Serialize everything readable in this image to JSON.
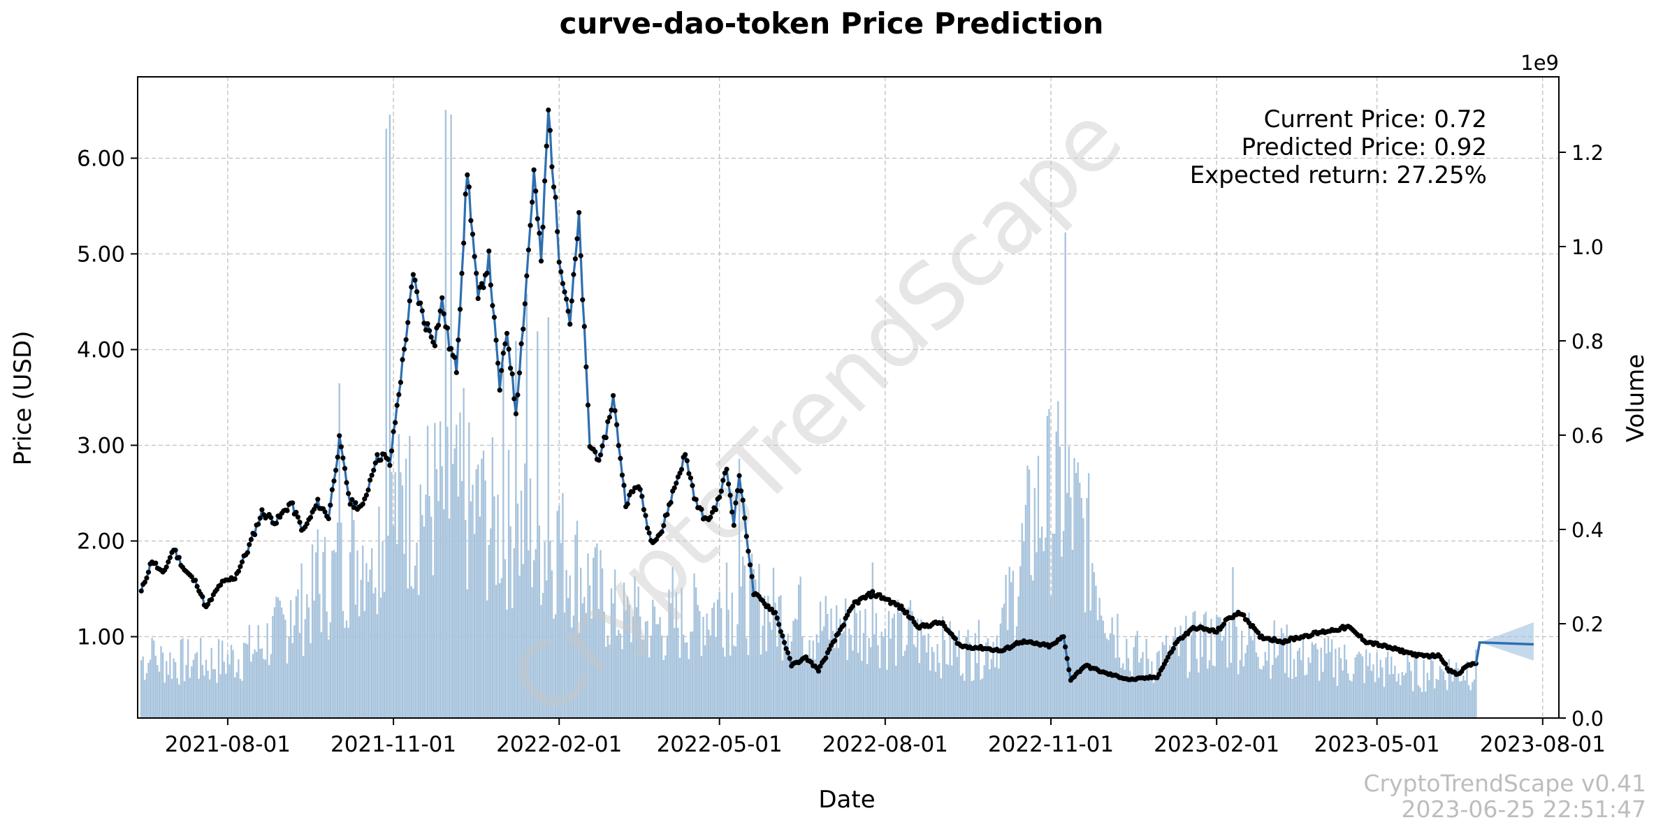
{
  "chart_data": {
    "type": "line",
    "title": "curve-dao-token Price Prediction",
    "xlabel": "Date",
    "ylabel": "Price (USD)",
    "y2label": "Volume",
    "y2_offset_label": "1e9",
    "grid": true,
    "xlim": [
      "2021-06-12",
      "2023-08-10"
    ],
    "ylim": [
      0.15,
      6.85
    ],
    "y2lim": [
      0,
      1.36
    ],
    "x_ticks": [
      "2021-08-01",
      "2021-11-01",
      "2022-02-01",
      "2022-05-01",
      "2022-08-01",
      "2022-11-01",
      "2023-02-01",
      "2023-05-01",
      "2023-08-01"
    ],
    "y_ticks": [
      1.0,
      2.0,
      3.0,
      4.0,
      5.0,
      6.0
    ],
    "y_tick_labels": [
      "1.00",
      "2.00",
      "3.00",
      "4.00",
      "5.00",
      "6.00"
    ],
    "y2_ticks": [
      0.0,
      0.2,
      0.4,
      0.6,
      0.8,
      1.0,
      1.2
    ],
    "y2_tick_labels": [
      "0.0",
      "0.2",
      "0.4",
      "0.6",
      "0.8",
      "1.0",
      "1.2"
    ],
    "price_series": {
      "name": "Price",
      "x": [
        "2021-06-14",
        "2021-06-20",
        "2021-06-26",
        "2021-07-02",
        "2021-07-08",
        "2021-07-15",
        "2021-07-20",
        "2021-07-28",
        "2021-08-05",
        "2021-08-12",
        "2021-08-20",
        "2021-08-28",
        "2021-09-05",
        "2021-09-12",
        "2021-09-20",
        "2021-09-26",
        "2021-10-02",
        "2021-10-08",
        "2021-10-15",
        "2021-10-22",
        "2021-10-26",
        "2021-10-30",
        "2021-11-05",
        "2021-11-12",
        "2021-11-18",
        "2021-11-24",
        "2021-11-28",
        "2021-12-02",
        "2021-12-06",
        "2021-12-12",
        "2021-12-18",
        "2021-12-24",
        "2021-12-30",
        "2022-01-03",
        "2022-01-08",
        "2022-01-13",
        "2022-01-18",
        "2022-01-22",
        "2022-01-26",
        "2022-02-01",
        "2022-02-07",
        "2022-02-12",
        "2022-02-18",
        "2022-02-24",
        "2022-03-03",
        "2022-03-10",
        "2022-03-17",
        "2022-03-24",
        "2022-03-30",
        "2022-04-05",
        "2022-04-12",
        "2022-04-18",
        "2022-04-24",
        "2022-04-30",
        "2022-05-05",
        "2022-05-09",
        "2022-05-12",
        "2022-05-20",
        "2022-06-01",
        "2022-06-10",
        "2022-06-18",
        "2022-06-25",
        "2022-07-05",
        "2022-07-15",
        "2022-07-25",
        "2022-08-01",
        "2022-08-10",
        "2022-08-20",
        "2022-09-01",
        "2022-09-12",
        "2022-09-25",
        "2022-10-05",
        "2022-10-15",
        "2022-10-25",
        "2022-11-01",
        "2022-11-08",
        "2022-11-12",
        "2022-11-20",
        "2022-12-01",
        "2022-12-15",
        "2022-12-30",
        "2023-01-10",
        "2023-01-20",
        "2023-02-01",
        "2023-02-08",
        "2023-02-15",
        "2023-02-25",
        "2023-03-10",
        "2023-03-20",
        "2023-04-01",
        "2023-04-15",
        "2023-04-25",
        "2023-05-05",
        "2023-05-15",
        "2023-05-25",
        "2023-06-05",
        "2023-06-10",
        "2023-06-15",
        "2023-06-20",
        "2023-06-25"
      ],
      "y": [
        1.47,
        1.8,
        1.65,
        1.92,
        1.7,
        1.55,
        1.3,
        1.55,
        1.62,
        1.9,
        2.3,
        2.2,
        2.4,
        2.1,
        2.4,
        2.25,
        3.05,
        2.4,
        2.35,
        2.85,
        2.9,
        2.8,
        3.7,
        4.75,
        4.3,
        4.1,
        4.5,
        4.05,
        3.8,
        5.88,
        4.5,
        4.95,
        3.6,
        4.2,
        3.35,
        4.5,
        5.85,
        4.9,
        6.5,
        5.0,
        4.3,
        5.35,
        3.0,
        2.85,
        3.5,
        2.4,
        2.6,
        2.0,
        2.1,
        2.5,
        2.9,
        2.4,
        2.2,
        2.4,
        2.75,
        2.2,
        2.7,
        1.45,
        1.25,
        0.7,
        0.78,
        0.65,
        1.0,
        1.35,
        1.45,
        1.4,
        1.3,
        1.1,
        1.15,
        0.9,
        0.88,
        0.85,
        0.95,
        0.92,
        0.9,
        1.0,
        0.55,
        0.7,
        0.62,
        0.55,
        0.58,
        0.95,
        1.1,
        1.05,
        1.2,
        1.25,
        1.0,
        0.95,
        1.0,
        1.05,
        1.1,
        0.95,
        0.9,
        0.85,
        0.8,
        0.8,
        0.65,
        0.6,
        0.7,
        0.72
      ]
    },
    "prediction": {
      "name": "Prediction",
      "x": [
        "2023-06-25",
        "2023-06-27",
        "2023-07-27"
      ],
      "y": [
        0.72,
        0.94,
        0.92
      ],
      "band_upper": [
        0.72,
        0.94,
        1.15
      ],
      "band_lower": [
        0.72,
        0.94,
        0.75
      ]
    },
    "volume_series": {
      "name": "Volume",
      "spikes": [
        {
          "x": "2021-06-20",
          "y": 0.17
        },
        {
          "x": "2021-07-15",
          "y": 0.14
        },
        {
          "x": "2021-08-10",
          "y": 0.16
        },
        {
          "x": "2021-09-05",
          "y": 0.25
        },
        {
          "x": "2021-09-20",
          "y": 0.4
        },
        {
          "x": "2021-10-02",
          "y": 0.71
        },
        {
          "x": "2021-10-10",
          "y": 0.42
        },
        {
          "x": "2021-10-20",
          "y": 0.36
        },
        {
          "x": "2021-10-28",
          "y": 1.25
        },
        {
          "x": "2021-10-30",
          "y": 1.28
        },
        {
          "x": "2021-11-08",
          "y": 0.55
        },
        {
          "x": "2021-11-20",
          "y": 0.62
        },
        {
          "x": "2021-11-30",
          "y": 1.29
        },
        {
          "x": "2021-12-03",
          "y": 1.28
        },
        {
          "x": "2021-12-10",
          "y": 0.7
        },
        {
          "x": "2021-12-20",
          "y": 0.55
        },
        {
          "x": "2022-01-01",
          "y": 0.75
        },
        {
          "x": "2022-01-08",
          "y": 0.8
        },
        {
          "x": "2022-01-14",
          "y": 0.9
        },
        {
          "x": "2022-01-20",
          "y": 0.82
        },
        {
          "x": "2022-01-26",
          "y": 0.85
        },
        {
          "x": "2022-02-01",
          "y": 0.45
        },
        {
          "x": "2022-02-20",
          "y": 0.34
        },
        {
          "x": "2022-03-15",
          "y": 0.3
        },
        {
          "x": "2022-04-05",
          "y": 0.32
        },
        {
          "x": "2022-05-05",
          "y": 0.33
        },
        {
          "x": "2022-05-12",
          "y": 0.55
        },
        {
          "x": "2022-06-15",
          "y": 0.3
        },
        {
          "x": "2022-07-25",
          "y": 0.33
        },
        {
          "x": "2022-08-15",
          "y": 0.25
        },
        {
          "x": "2022-09-20",
          "y": 0.18
        },
        {
          "x": "2022-11-09",
          "y": 1.03
        },
        {
          "x": "2022-12-15",
          "y": 0.1
        },
        {
          "x": "2023-01-25",
          "y": 0.22
        },
        {
          "x": "2023-02-10",
          "y": 0.32
        },
        {
          "x": "2023-03-10",
          "y": 0.18
        },
        {
          "x": "2023-04-10",
          "y": 0.15
        },
        {
          "x": "2023-05-20",
          "y": 0.1
        },
        {
          "x": "2023-06-20",
          "y": 0.12
        }
      ]
    },
    "annotation": {
      "current_price": "Current Price: 0.72",
      "predicted_price": "Predicted Price: 0.92",
      "expected_return": "Expected return: 27.25%"
    },
    "watermark": "CryptoTrendScape",
    "footer": {
      "version": "CryptoTrendScape v0.41",
      "timestamp": "2023-06-25 22:51:47"
    },
    "colors": {
      "price_line": "#2e6fb0",
      "price_dot": "#000000",
      "volume_bar": "#a7c3dc",
      "band": "#9cc0e0"
    }
  }
}
